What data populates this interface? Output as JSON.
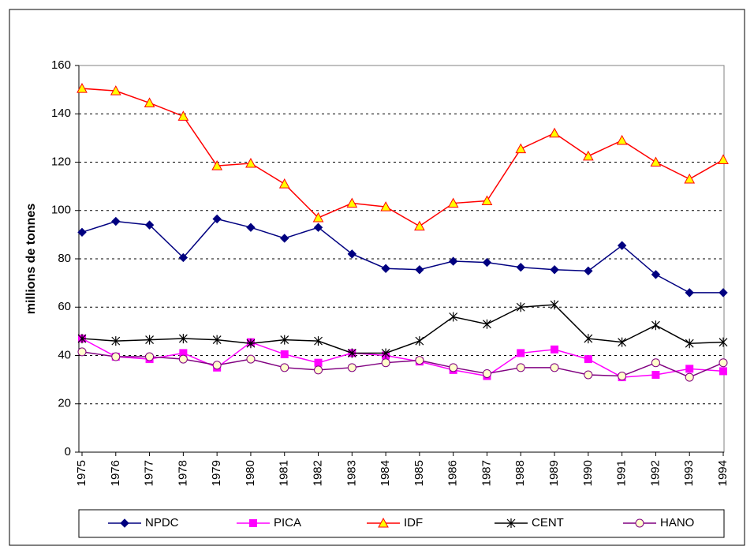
{
  "chart_data": {
    "type": "line",
    "y_label": "millions de tonnes",
    "categories": [
      "1975",
      "1976",
      "1977",
      "1978",
      "1979",
      "1980",
      "1981",
      "1982",
      "1983",
      "1984",
      "1985",
      "1986",
      "1987",
      "1988",
      "1989",
      "1990",
      "1991",
      "1992",
      "1993",
      "1994"
    ],
    "ylim": [
      0,
      160
    ],
    "yticks": [
      0,
      20,
      40,
      60,
      80,
      100,
      120,
      140,
      160
    ],
    "grid": true,
    "legend": "bottom",
    "series": [
      {
        "name": "NPDC",
        "color": "#000080",
        "marker": "diamond",
        "values": [
          91,
          95.5,
          94,
          80.5,
          96.5,
          93,
          88.5,
          93,
          82,
          76,
          75.5,
          79,
          78.5,
          76.5,
          75.5,
          75,
          85.5,
          73.5,
          66,
          66
        ]
      },
      {
        "name": "PICA",
        "color": "#ff00ff",
        "marker": "square",
        "values": [
          47,
          39.5,
          38.5,
          41,
          35,
          45.5,
          40.5,
          37,
          41,
          40,
          37.5,
          34,
          31.5,
          41,
          42.5,
          38.5,
          31,
          32,
          34.5,
          33.5
        ]
      },
      {
        "name": "IDF",
        "color": "#ff0000",
        "marker": "triangle",
        "values": [
          150.5,
          149.5,
          144.5,
          139,
          118.5,
          119.5,
          111,
          97,
          103,
          101.5,
          93.5,
          103,
          104,
          125.5,
          132,
          122.5,
          129,
          120,
          113,
          121
        ]
      },
      {
        "name": "CENT",
        "color": "#000000",
        "marker": "star",
        "values": [
          47,
          46,
          46.5,
          47,
          46.5,
          45,
          46.5,
          46,
          41,
          41,
          46,
          56,
          53,
          60,
          61,
          47,
          45.5,
          52.5,
          45,
          45.5
        ]
      },
      {
        "name": "HANO",
        "color": "#800080",
        "marker": "circle",
        "values": [
          41.5,
          39.5,
          39.5,
          38.5,
          36,
          38.5,
          35,
          34,
          35,
          37,
          38,
          35,
          32.5,
          35,
          35,
          32,
          31.5,
          37,
          31,
          37
        ]
      }
    ]
  }
}
